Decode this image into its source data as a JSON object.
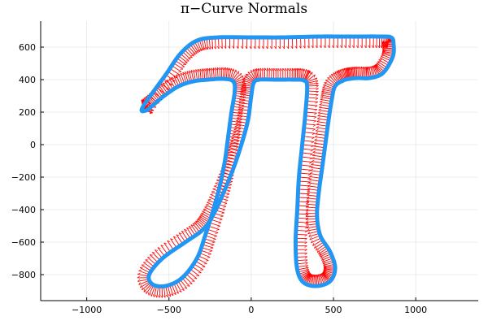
{
  "chart_data": {
    "type": "line",
    "title": "π−Curve Normals",
    "xlabel": "",
    "ylabel": "",
    "xlim": [
      -1280,
      1380
    ],
    "ylim": [
      -960,
      760
    ],
    "xticks": [
      -1000,
      -500,
      0,
      500,
      1000
    ],
    "xtick_labels": [
      "−1000",
      "−500",
      "0",
      "500",
      "1000"
    ],
    "yticks": [
      600,
      400,
      200,
      0,
      -200,
      -400,
      -600,
      -800
    ],
    "ytick_labels": [
      "600",
      "400",
      "200",
      "0",
      "−200",
      "−400",
      "−600",
      "−800"
    ],
    "grid": true,
    "legend": "none",
    "curve_color": "#2196f3",
    "normal_color": "#ff0000",
    "curve": [
      [
        -660,
        230
      ],
      [
        -520,
        430
      ],
      [
        -430,
        560
      ],
      [
        -330,
        640
      ],
      [
        -200,
        660
      ],
      [
        0,
        660
      ],
      [
        200,
        660
      ],
      [
        400,
        665
      ],
      [
        600,
        665
      ],
      [
        780,
        665
      ],
      [
        850,
        660
      ],
      [
        865,
        620
      ],
      [
        860,
        540
      ],
      [
        800,
        440
      ],
      [
        720,
        410
      ],
      [
        650,
        410
      ],
      [
        600,
        405
      ],
      [
        560,
        395
      ],
      [
        510,
        360
      ],
      [
        490,
        280
      ],
      [
        470,
        150
      ],
      [
        450,
        0
      ],
      [
        430,
        -150
      ],
      [
        410,
        -300
      ],
      [
        400,
        -440
      ],
      [
        420,
        -560
      ],
      [
        480,
        -660
      ],
      [
        510,
        -760
      ],
      [
        480,
        -840
      ],
      [
        400,
        -870
      ],
      [
        320,
        -850
      ],
      [
        280,
        -770
      ],
      [
        270,
        -600
      ],
      [
        280,
        -400
      ],
      [
        290,
        -200
      ],
      [
        310,
        0
      ],
      [
        330,
        200
      ],
      [
        340,
        360
      ],
      [
        320,
        395
      ],
      [
        260,
        400
      ],
      [
        150,
        400
      ],
      [
        50,
        400
      ],
      [
        15,
        380
      ],
      [
        0,
        300
      ],
      [
        -20,
        150
      ],
      [
        -60,
        0
      ],
      [
        -110,
        -150
      ],
      [
        -170,
        -300
      ],
      [
        -230,
        -430
      ],
      [
        -290,
        -520
      ],
      [
        -400,
        -600
      ],
      [
        -540,
        -700
      ],
      [
        -620,
        -800
      ],
      [
        -600,
        -860
      ],
      [
        -520,
        -870
      ],
      [
        -420,
        -820
      ],
      [
        -330,
        -700
      ],
      [
        -280,
        -560
      ],
      [
        -230,
        -400
      ],
      [
        -190,
        -250
      ],
      [
        -160,
        -100
      ],
      [
        -140,
        50
      ],
      [
        -120,
        200
      ],
      [
        -100,
        330
      ],
      [
        -110,
        390
      ],
      [
        -170,
        405
      ],
      [
        -260,
        400
      ],
      [
        -350,
        390
      ],
      [
        -440,
        360
      ],
      [
        -530,
        300
      ],
      [
        -600,
        240
      ],
      [
        -640,
        210
      ],
      [
        -660,
        230
      ]
    ],
    "normal_length": 60
  }
}
